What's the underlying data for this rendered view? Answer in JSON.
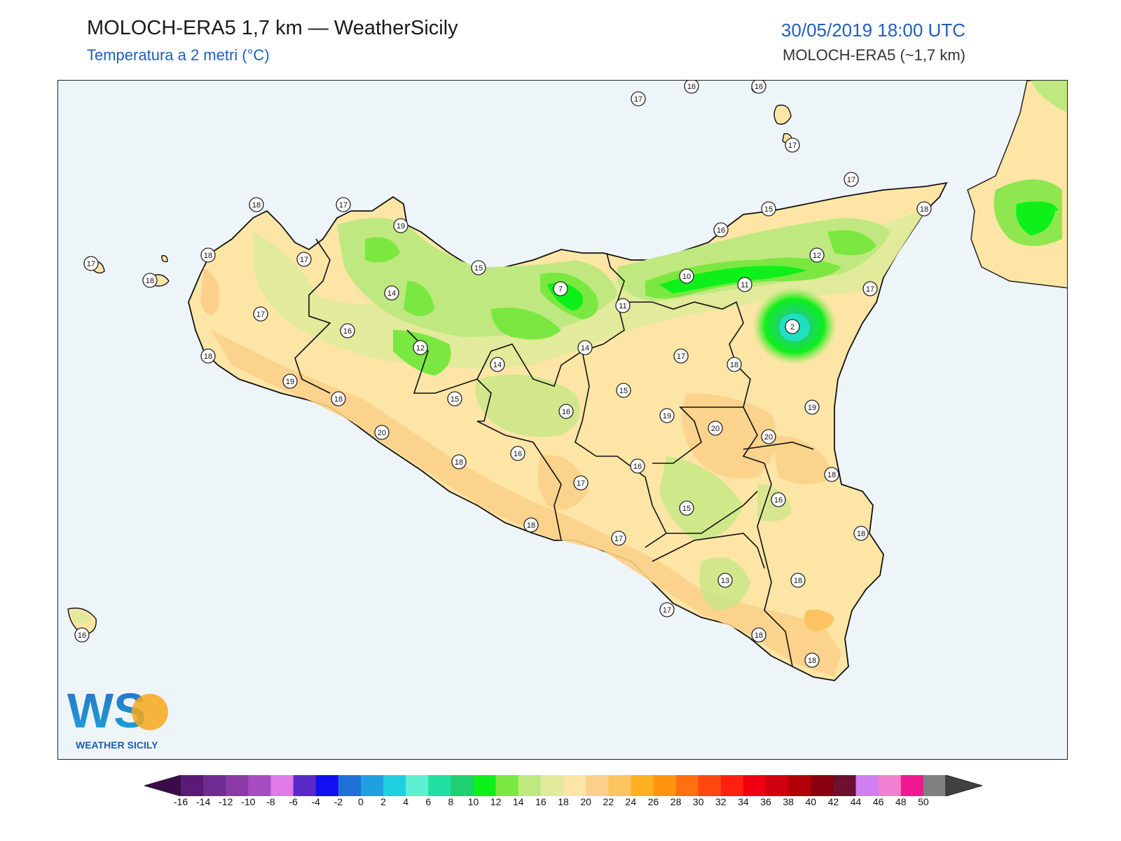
{
  "header": {
    "title": "MOLOCH-ERA5 1,7 km — WeatherSicily",
    "subtitle": "Temperatura a 2 metri (°C)",
    "datetime": "30/05/2019 18:00 UTC",
    "model": "MOLOCH-ERA5 (~1,7 km)"
  },
  "logo": {
    "letters": "WS",
    "name": "WEATHER SICILY"
  },
  "colorbar": {
    "ticks": [
      "-16",
      "-14",
      "-12",
      "-10",
      "-8",
      "-6",
      "-4",
      "-2",
      "0",
      "2",
      "4",
      "6",
      "8",
      "10",
      "12",
      "14",
      "16",
      "18",
      "20",
      "22",
      "24",
      "26",
      "28",
      "30",
      "32",
      "34",
      "36",
      "38",
      "40",
      "42",
      "44",
      "46",
      "48",
      "50"
    ],
    "colors": [
      "#3b0a4a",
      "#5a1a78",
      "#6f2c93",
      "#8b3aa8",
      "#a84cc4",
      "#e07ae8",
      "#5a2ac8",
      "#1010f0",
      "#1f6fd8",
      "#1fa0e0",
      "#1fd0e0",
      "#5ef0d0",
      "#1fe0a0",
      "#1fd070",
      "#0ef01a",
      "#7ae840",
      "#bfe880",
      "#e0ea9a",
      "#fde5a6",
      "#fcd08a",
      "#fbc460",
      "#ffb020",
      "#ff9410",
      "#ff7010",
      "#ff4810",
      "#ff2010",
      "#f00010",
      "#d00010",
      "#b00008",
      "#8a0010",
      "#6e1030",
      "#d07ef0",
      "#f080d0",
      "#f01890",
      "#808080",
      "#404040"
    ]
  },
  "map": {
    "labels": [
      {
        "v": "17"
      },
      {
        "v": "16"
      },
      {
        "v": "16"
      },
      {
        "v": "17"
      },
      {
        "v": "17"
      },
      {
        "v": "18"
      },
      {
        "v": "18"
      },
      {
        "v": "17"
      },
      {
        "v": "19"
      },
      {
        "v": "15"
      },
      {
        "v": "16"
      },
      {
        "v": "17"
      },
      {
        "v": "18"
      },
      {
        "v": "17"
      },
      {
        "v": "14"
      },
      {
        "v": "15"
      },
      {
        "v": "7"
      },
      {
        "v": "10"
      },
      {
        "v": "12"
      },
      {
        "v": "11"
      },
      {
        "v": "11"
      },
      {
        "v": "17"
      },
      {
        "v": "17"
      },
      {
        "v": "16"
      },
      {
        "v": "12"
      },
      {
        "v": "14"
      },
      {
        "v": "14"
      },
      {
        "v": "2"
      },
      {
        "v": "18"
      },
      {
        "v": "17"
      },
      {
        "v": "15"
      },
      {
        "v": "16"
      },
      {
        "v": "15"
      },
      {
        "v": "19"
      },
      {
        "v": "19"
      },
      {
        "v": "20"
      },
      {
        "v": "18"
      },
      {
        "v": "20"
      },
      {
        "v": "18"
      },
      {
        "v": "16"
      },
      {
        "v": "17"
      },
      {
        "v": "16"
      },
      {
        "v": "18"
      },
      {
        "v": "16"
      },
      {
        "v": "15"
      },
      {
        "v": "18"
      },
      {
        "v": "17"
      },
      {
        "v": "18"
      },
      {
        "v": "13"
      },
      {
        "v": "18"
      },
      {
        "v": "17"
      },
      {
        "v": "18"
      },
      {
        "v": "18"
      },
      {
        "v": "16"
      },
      {
        "v": "18"
      },
      {
        "v": "19"
      },
      {
        "v": "18"
      },
      {
        "v": "20"
      }
    ]
  }
}
